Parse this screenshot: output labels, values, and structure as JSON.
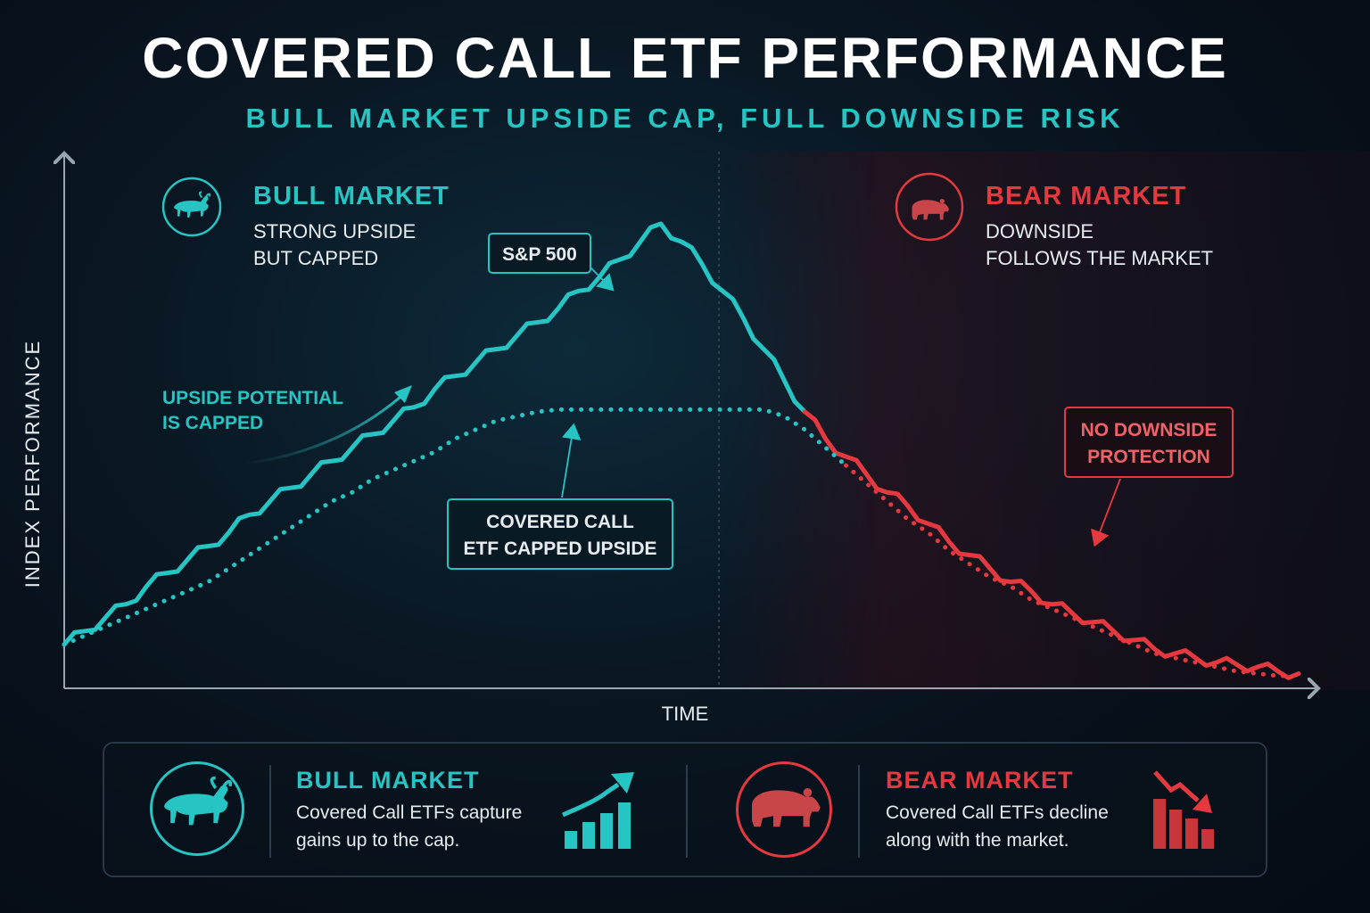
{
  "title": "COVERED CALL ETF PERFORMANCE",
  "subtitle": "BULL MARKET UPSIDE CAP, FULL DOWNSIDE RISK",
  "colors": {
    "bull": "#27c4c4",
    "bear": "#e5393f",
    "background": "#07101a"
  },
  "chart_data": {
    "type": "line",
    "xlabel": "TIME",
    "ylabel": "INDEX PERFORMANCE",
    "x": [
      0,
      1,
      2,
      3,
      4,
      5,
      6,
      7,
      8,
      9,
      10,
      11,
      12,
      13,
      14,
      15,
      16,
      17,
      18,
      19,
      20,
      21,
      22,
      23,
      24,
      25,
      26,
      27,
      28,
      29,
      30,
      31,
      32,
      33,
      34,
      35,
      36,
      37,
      38,
      39,
      40,
      41,
      42,
      43,
      44,
      45,
      46,
      47,
      48,
      49,
      50,
      51,
      52,
      53,
      54,
      55,
      56,
      57,
      58,
      59,
      60
    ],
    "xlim": [
      0,
      60
    ],
    "ylim": [
      0,
      100
    ],
    "grid": false,
    "series": [
      {
        "name": "S&P 500",
        "style": "solid",
        "values": [
          5,
          8,
          11,
          14,
          18,
          21,
          24,
          27,
          30,
          34,
          37,
          40,
          43,
          46,
          49,
          52,
          55,
          58,
          62,
          65,
          68,
          71,
          74,
          77,
          80,
          84,
          87,
          91,
          95,
          99,
          95,
          90,
          84,
          78,
          71,
          64,
          57,
          51,
          47,
          43,
          39,
          36,
          32,
          28,
          25,
          22,
          19,
          17,
          14,
          12,
          10,
          8,
          6,
          4,
          3,
          2,
          1,
          0.5,
          0,
          -1,
          -1.5
        ]
      },
      {
        "name": "COVERED CALL ETF CAPPED UPSIDE",
        "style": "dotted",
        "values": [
          5,
          7,
          9,
          11,
          13,
          15,
          17,
          19,
          22,
          25,
          28,
          31,
          34,
          37,
          39,
          42,
          44,
          46,
          48,
          51,
          53,
          55,
          56,
          57,
          57.5,
          57.5,
          57.5,
          57.5,
          57.5,
          57.5,
          57.5,
          57.5,
          57.5,
          57.5,
          57.5,
          56,
          53,
          49,
          45,
          41,
          37,
          33,
          30,
          26,
          23,
          20,
          18,
          15,
          13,
          11,
          9,
          7,
          5,
          3,
          2,
          1,
          0,
          -1,
          -1.5,
          -2,
          -2
        ]
      }
    ],
    "phases": [
      {
        "name": "BULL MARKET",
        "x_range": [
          0,
          29
        ]
      },
      {
        "name": "BEAR MARKET",
        "x_range": [
          29,
          60
        ]
      }
    ]
  },
  "callouts": {
    "bull_heading": "BULL MARKET",
    "bull_line1": "STRONG UPSIDE",
    "bull_line2": "BUT CAPPED",
    "bear_heading": "BEAR MARKET",
    "bear_line1": "DOWNSIDE",
    "bear_line2": "FOLLOWS THE MARKET",
    "sp500_label": "S&P 500",
    "upside_line1": "UPSIDE POTENTIAL",
    "upside_line2": "IS CAPPED",
    "cc_line1": "COVERED CALL",
    "cc_line2": "ETF CAPPED UPSIDE",
    "nodown_line1": "NO DOWNSIDE",
    "nodown_line2": "PROTECTION"
  },
  "panel": {
    "bull_title": "BULL MARKET",
    "bull_text": "Covered Call ETFs capture gains up to the cap.",
    "bear_title": "BEAR MARKET",
    "bear_text": "Covered Call ETFs decline along with the market."
  },
  "icons": {
    "bull": "bull-icon",
    "bear": "bear-icon",
    "trend_up": "chart-up-icon",
    "trend_down": "chart-down-icon"
  }
}
